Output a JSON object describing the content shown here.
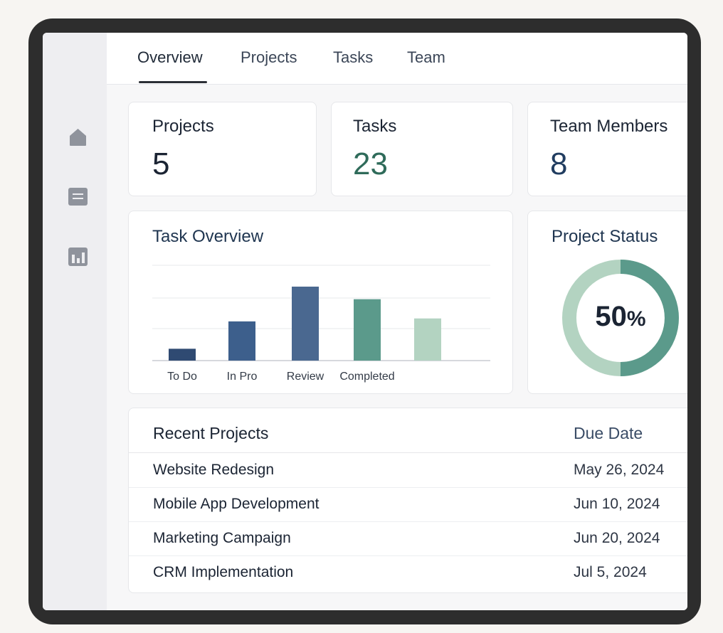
{
  "tabs": [
    {
      "label": "Overview",
      "active": true
    },
    {
      "label": "Projects",
      "active": false
    },
    {
      "label": "Tasks",
      "active": false
    },
    {
      "label": "Team",
      "active": false
    }
  ],
  "sidebar": {
    "icons": [
      "home-icon",
      "document-icon",
      "chart-icon"
    ]
  },
  "stats": {
    "projects": {
      "label": "Projects",
      "value": "5"
    },
    "tasks": {
      "label": "Tasks",
      "value": "23"
    },
    "team": {
      "label": "Team Members",
      "value": "8"
    }
  },
  "task_overview": {
    "title": "Task Overview"
  },
  "chart_data": [
    {
      "type": "bar",
      "title": "Task Overview",
      "categories": [
        "To Do",
        "In Pro",
        "Review",
        "Completed",
        ""
      ],
      "values": [
        0.16,
        0.53,
        1.0,
        0.83,
        0.57
      ],
      "grid": true,
      "colors": [
        "#2f4a72",
        "#3d5f8c",
        "#4a6890",
        "#5b9a8b",
        "#b3d3c1"
      ]
    },
    {
      "type": "pie",
      "title": "Project Status",
      "values": [
        50,
        50
      ],
      "colors": [
        "#5b9a8b",
        "#b3d3c1"
      ]
    }
  ],
  "project_status": {
    "title": "Project Status",
    "percent_value": "50",
    "percent_sign": "%"
  },
  "recent_projects": {
    "title": "Recent Projects",
    "date_header": "Due Date",
    "rows": [
      {
        "name": "Website Redesign",
        "due": "May 26, 2024"
      },
      {
        "name": "Mobile App Development",
        "due": "Jun 10, 2024"
      },
      {
        "name": "Marketing Campaign",
        "due": "Jun 20, 2024"
      },
      {
        "name": "CRM Implementation",
        "due": "Jul 5, 2024"
      }
    ]
  },
  "colors": {
    "accent_green": "#2f6b5a",
    "accent_navy": "#213d60",
    "sidebar_icon": "#8f939c"
  }
}
